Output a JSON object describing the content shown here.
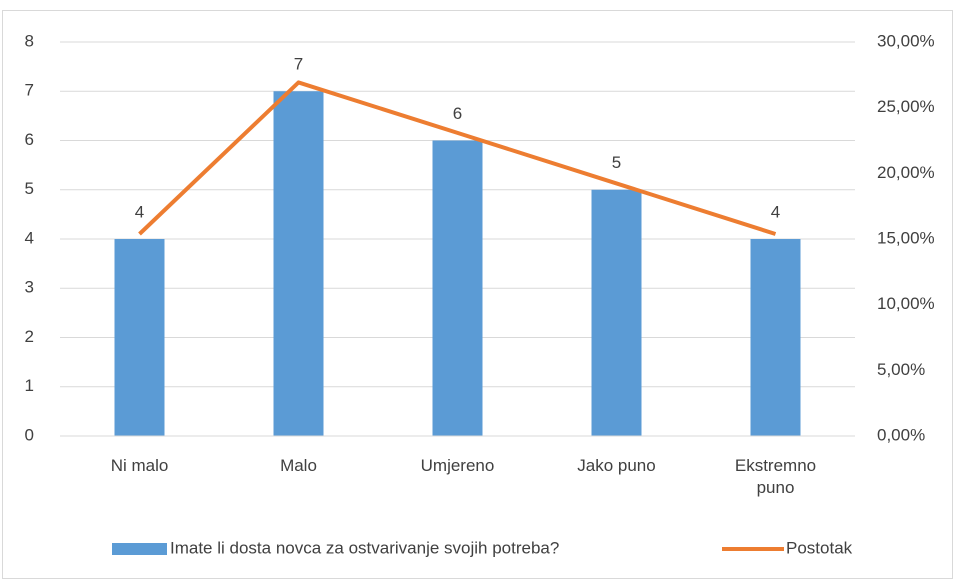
{
  "chart_data": {
    "type": "bar",
    "categories": [
      "Ni malo",
      "Malo",
      "Umjereno",
      "Jako puno",
      "Ekstremno puno"
    ],
    "series": [
      {
        "name": "Imate li dosta novca za ostvarivanje svojih potreba?",
        "color": "#5b9bd5",
        "values": [
          4,
          7,
          6,
          5,
          4
        ]
      },
      {
        "name": "Postotak",
        "color": "#ed7d31",
        "type": "line",
        "axis": "y2",
        "values": [
          15.38,
          26.92,
          23.08,
          19.23,
          15.38
        ]
      }
    ],
    "ylim": [
      0,
      8
    ],
    "yticks": [
      0,
      1,
      2,
      3,
      4,
      5,
      6,
      7,
      8
    ],
    "y2lim": [
      0,
      30
    ],
    "y2ticks": [
      {
        "value": 0,
        "label": "0,00%"
      },
      {
        "value": 5,
        "label": "5,00%"
      },
      {
        "value": 10,
        "label": "10,00%"
      },
      {
        "value": 15,
        "label": "15,00%"
      },
      {
        "value": 20,
        "label": "20,00%"
      },
      {
        "value": 25,
        "label": "25,00%"
      },
      {
        "value": 30,
        "label": "30,00%"
      }
    ],
    "grid": true,
    "legend": "bottom"
  }
}
